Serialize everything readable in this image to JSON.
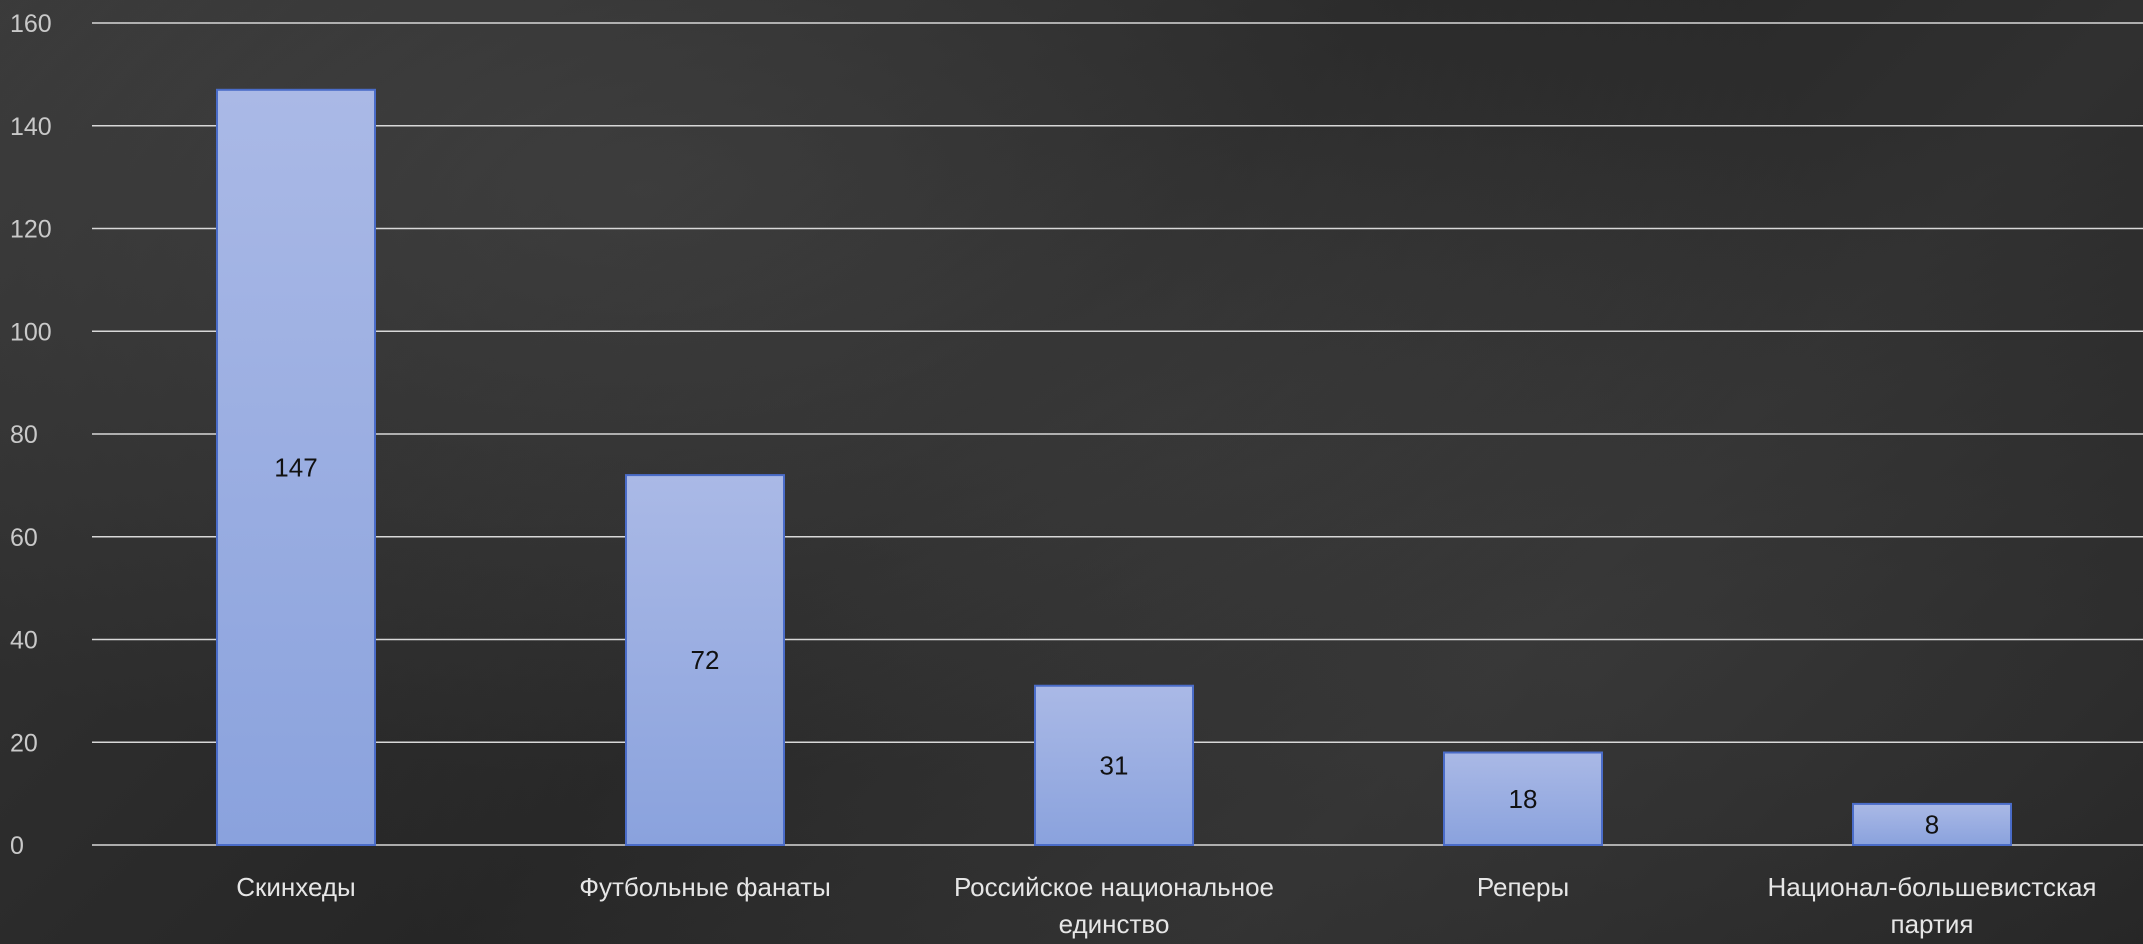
{
  "colors": {
    "bar_top": "#aab9e6",
    "bar_bottom": "#8aa2dd",
    "bar_border": "#4a6cc8",
    "gridline": "#d8d8d8",
    "tick_text": "#c9c9c9",
    "category_text": "#e6e6e6",
    "data_label_text": "#111111"
  },
  "chart_data": {
    "type": "bar",
    "title": "",
    "xlabel": "",
    "ylabel": "",
    "ylim": [
      0,
      160
    ],
    "yticks": [
      0,
      20,
      40,
      60,
      80,
      100,
      120,
      140,
      160
    ],
    "grid": true,
    "legend": "none",
    "categories": [
      [
        "Скинхеды"
      ],
      [
        "Футбольные фанаты"
      ],
      [
        "Российское национальное",
        "единство"
      ],
      [
        "Реперы"
      ],
      [
        "Национал-большевистская",
        "партия"
      ]
    ],
    "values": [
      147,
      72,
      31,
      18,
      8
    ]
  }
}
